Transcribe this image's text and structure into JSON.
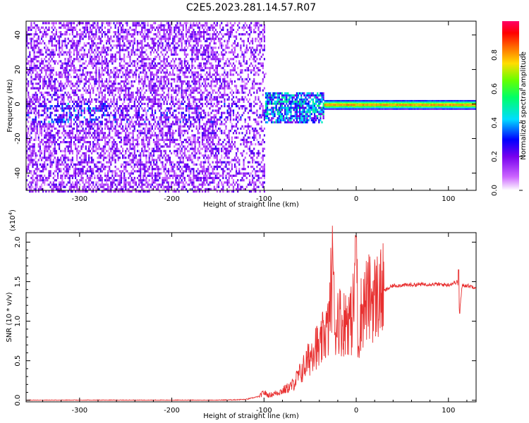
{
  "title": "C2E5.2023.281.14.57.R07",
  "chart_data": [
    {
      "type": "heatmap",
      "xlabel": "Height of straight line (km)",
      "ylabel": "Frequency (Hz)",
      "xlim": [
        -358,
        130
      ],
      "ylim": [
        -50,
        48
      ],
      "xticks": [
        -300,
        -200,
        -100,
        0,
        100
      ],
      "yticks": [
        -40,
        -20,
        0,
        20,
        40
      ],
      "colorbar": {
        "label": "Normalized spectral amplitude",
        "range": [
          0,
          1
        ],
        "ticks": [
          "0.0",
          "0.2",
          "0.4",
          "0.6",
          "0.8"
        ],
        "colors": [
          "#ffffff",
          "#cc66ff",
          "#7700ee",
          "#0000ff",
          "#00ddff",
          "#00ff66",
          "#66ff00",
          "#ffdd00",
          "#ff6600",
          "#ff0000",
          "#ff0066"
        ]
      },
      "description_bands": [
        {
          "x": [
            -358,
            -100
          ],
          "spread_hz": 48,
          "level": [
            0.1,
            0.35
          ]
        },
        {
          "x": [
            -100,
            -35
          ],
          "spread_hz": 8,
          "level": [
            0.3,
            0.6
          ]
        },
        {
          "x": [
            -35,
            130
          ],
          "spread_hz": 2,
          "level": [
            0.6,
            0.95
          ]
        }
      ]
    },
    {
      "type": "line",
      "xlabel": "Height of straight line (km)",
      "ylabel": "SNR (10 * v/v)",
      "scale_label": "(x10",
      "scale_exp": "4",
      "scale_close": ")",
      "xlim": [
        -358,
        130
      ],
      "ylim": [
        -0.02,
        2.12
      ],
      "xticks": [
        -300,
        -200,
        -100,
        0,
        100
      ],
      "yticks": [
        "0.0",
        "0.5",
        "1.0",
        "1.5",
        "2.0"
      ],
      "line_color": "#e83030",
      "series": [
        {
          "x": [
            -358,
            -300,
            -250,
            -200,
            -150,
            -120,
            -105,
            -100,
            -95,
            -90,
            -80,
            -70,
            -60,
            -50,
            -45,
            -40,
            -35,
            -30,
            -26,
            -24,
            -20,
            -15,
            -10,
            -5,
            -2,
            0,
            2,
            5,
            10,
            15,
            20,
            30,
            40,
            60,
            80,
            100,
            110,
            112,
            115,
            120,
            130
          ],
          "y": [
            0.0,
            0.0,
            0.0,
            0.0,
            0.0,
            0.01,
            0.05,
            0.1,
            0.06,
            0.08,
            0.12,
            0.18,
            0.35,
            0.55,
            0.75,
            0.6,
            0.85,
            0.9,
            1.65,
            0.8,
            1.1,
            0.95,
            1.05,
            1.0,
            1.3,
            2.05,
            0.7,
            1.1,
            1.25,
            1.3,
            1.3,
            1.38,
            1.45,
            1.46,
            1.47,
            1.46,
            1.5,
            1.1,
            1.46,
            1.45,
            1.43
          ]
        }
      ]
    }
  ]
}
